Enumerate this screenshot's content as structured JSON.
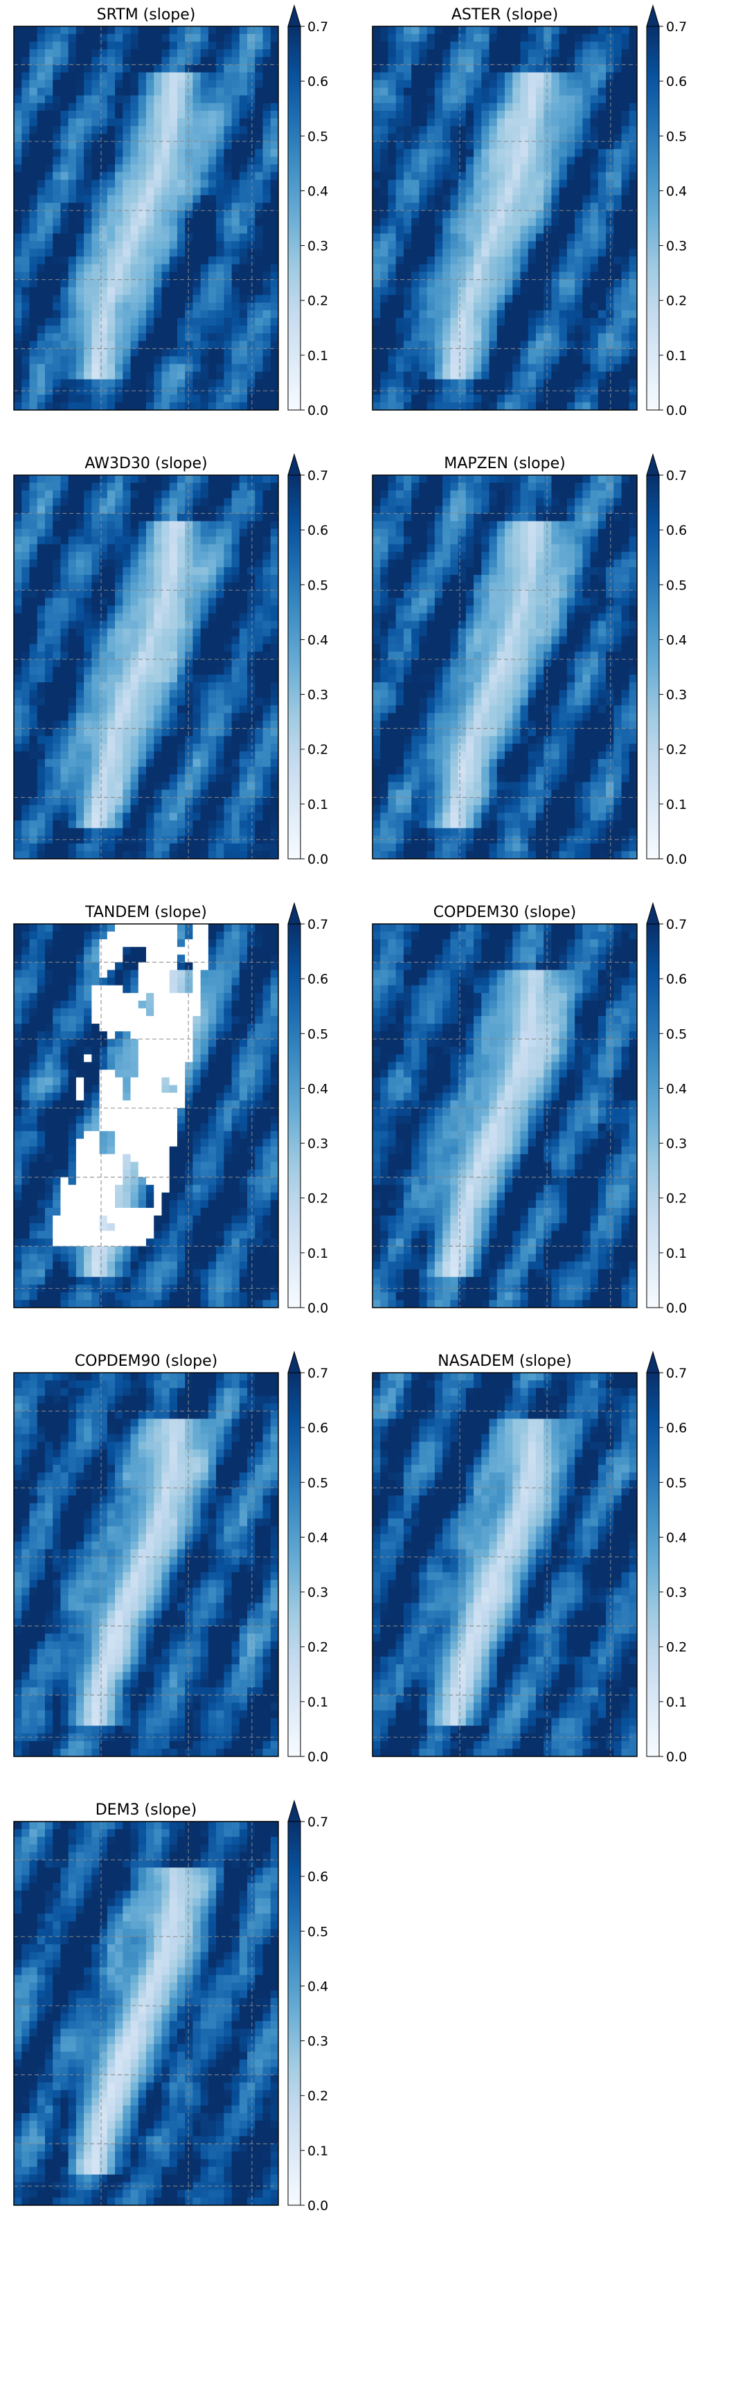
{
  "figure": {
    "title_suffix": " (slope)",
    "colormap": "Blues",
    "colormap_stops": [
      "#f7fbff",
      "#deebf7",
      "#c6dbef",
      "#9ecae1",
      "#6baed6",
      "#4292c6",
      "#2171b5",
      "#08519c",
      "#08306b"
    ],
    "colorbar": {
      "vmin": 0.0,
      "vmax": 0.7,
      "extend": "max",
      "ticks": [
        "0.0",
        "0.1",
        "0.2",
        "0.3",
        "0.4",
        "0.5",
        "0.6",
        "0.7"
      ]
    },
    "gridlines": "dashed grey",
    "accent_color": "#08306b"
  },
  "chart_data": [
    {
      "type": "heatmap",
      "title": "SRTM (slope)",
      "name": "SRTM",
      "vmin": 0.0,
      "vmax": 0.7,
      "colorbar_extend": "max",
      "nodata_white": false
    },
    {
      "type": "heatmap",
      "title": "ASTER (slope)",
      "name": "ASTER",
      "vmin": 0.0,
      "vmax": 0.7,
      "colorbar_extend": "max",
      "nodata_white": false
    },
    {
      "type": "heatmap",
      "title": "AW3D30 (slope)",
      "name": "AW3D30",
      "vmin": 0.0,
      "vmax": 0.7,
      "colorbar_extend": "max",
      "nodata_white": false
    },
    {
      "type": "heatmap",
      "title": "MAPZEN (slope)",
      "name": "MAPZEN",
      "vmin": 0.0,
      "vmax": 0.7,
      "colorbar_extend": "max",
      "nodata_white": false
    },
    {
      "type": "heatmap",
      "title": "TANDEM (slope)",
      "name": "TANDEM",
      "vmin": 0.0,
      "vmax": 0.7,
      "colorbar_extend": "max",
      "nodata_white": true
    },
    {
      "type": "heatmap",
      "title": "COPDEM30 (slope)",
      "name": "COPDEM30",
      "vmin": 0.0,
      "vmax": 0.7,
      "colorbar_extend": "max",
      "nodata_white": false
    },
    {
      "type": "heatmap",
      "title": "COPDEM90 (slope)",
      "name": "COPDEM90",
      "vmin": 0.0,
      "vmax": 0.7,
      "colorbar_extend": "max",
      "nodata_white": false
    },
    {
      "type": "heatmap",
      "title": "NASADEM (slope)",
      "name": "NASADEM",
      "vmin": 0.0,
      "vmax": 0.7,
      "colorbar_extend": "max",
      "nodata_white": false
    },
    {
      "type": "heatmap",
      "title": "DEM3 (slope)",
      "name": "DEM3",
      "vmin": 0.0,
      "vmax": 0.7,
      "colorbar_extend": "max",
      "nodata_white": false
    }
  ]
}
